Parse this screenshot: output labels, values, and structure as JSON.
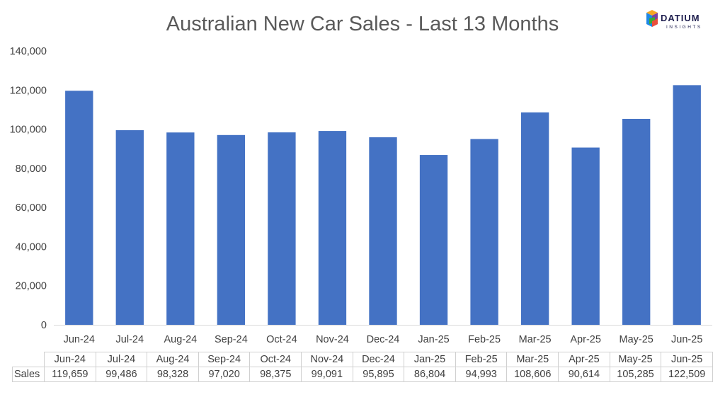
{
  "logo": {
    "word": "DATIUM",
    "sub": "INSIGHTS",
    "colors": [
      "#f5a623",
      "#e94e3c",
      "#3aaa35",
      "#1e88e5",
      "#7b3fa0"
    ]
  },
  "chart_data": {
    "type": "bar",
    "title": "Australian New Car Sales  - Last 13 Months",
    "xlabel": "",
    "ylabel": "",
    "categories": [
      "Jun-24",
      "Jul-24",
      "Aug-24",
      "Sep-24",
      "Oct-24",
      "Nov-24",
      "Dec-24",
      "Jan-25",
      "Feb-25",
      "Mar-25",
      "Apr-25",
      "May-25",
      "Jun-25"
    ],
    "series": [
      {
        "name": "Sales",
        "values": [
          119659,
          99486,
          98328,
          97020,
          98375,
          99091,
          95895,
          86804,
          94993,
          108606,
          90614,
          105285,
          122509
        ]
      }
    ],
    "ylim": [
      0,
      140000
    ],
    "yticks": [
      0,
      20000,
      40000,
      60000,
      80000,
      100000,
      120000,
      140000
    ],
    "ytick_labels": [
      "0",
      "20,000",
      "40,000",
      "60,000",
      "80,000",
      "100,000",
      "120,000",
      "140,000"
    ],
    "grid": false,
    "bar_color": "#4472C4",
    "data_table": {
      "row_label": "Sales",
      "values": [
        "119,659",
        "99,486",
        "98,328",
        "97,020",
        "98,375",
        "99,091",
        "95,895",
        "86,804",
        "94,993",
        "108,606",
        "90,614",
        "105,285",
        "122,509"
      ]
    }
  }
}
